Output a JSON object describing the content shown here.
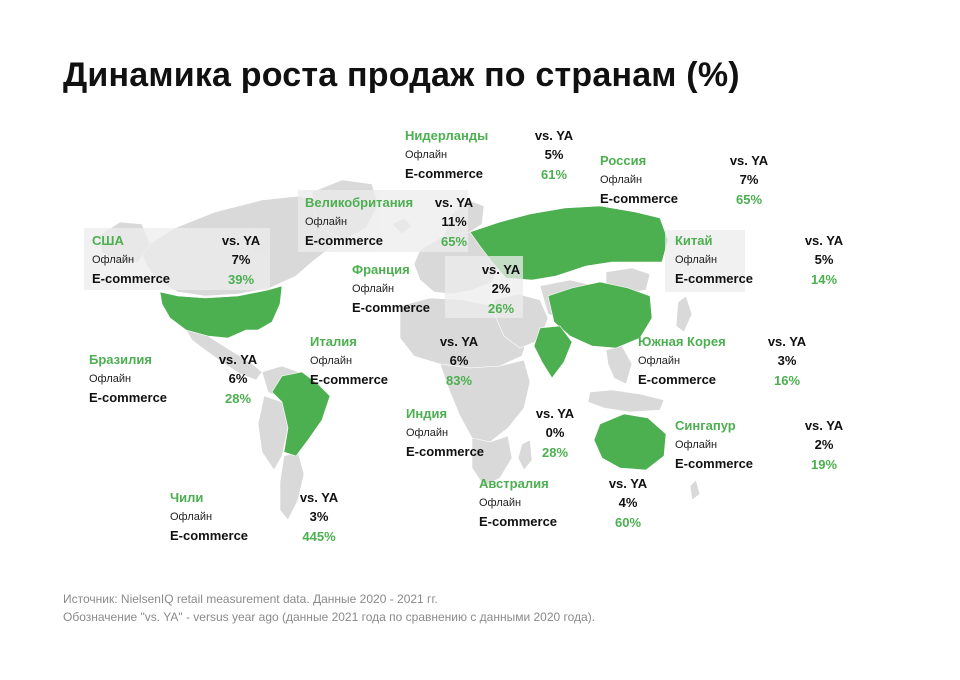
{
  "title": "Динамика роста продаж по странам (%)",
  "colors": {
    "accent": "#4caf50",
    "land": "#d9d9d9",
    "highlight": "#4caf50",
    "text": "#111111",
    "footnote": "#8a8a8a"
  },
  "labels": {
    "vs": "vs. YA",
    "offline": "Офлайн",
    "ecommerce": "E-commerce"
  },
  "countries": [
    {
      "id": "nl",
      "name": "Нидерланды",
      "offline": "5%",
      "ecommerce": "61%"
    },
    {
      "id": "ru",
      "name": "Россия",
      "offline": "7%",
      "ecommerce": "65%"
    },
    {
      "id": "uk",
      "name": "Великобритания",
      "offline": "11%",
      "ecommerce": "65%"
    },
    {
      "id": "us",
      "name": "США",
      "offline": "7%",
      "ecommerce": "39%"
    },
    {
      "id": "cn",
      "name": "Китай",
      "offline": "5%",
      "ecommerce": "14%"
    },
    {
      "id": "fr",
      "name": "Франция",
      "offline": "2%",
      "ecommerce": "26%"
    },
    {
      "id": "it",
      "name": "Италия",
      "offline": "6%",
      "ecommerce": "83%"
    },
    {
      "id": "kr",
      "name": "Южная Корея",
      "offline": "3%",
      "ecommerce": "16%"
    },
    {
      "id": "br",
      "name": "Бразилия",
      "offline": "6%",
      "ecommerce": "28%"
    },
    {
      "id": "in",
      "name": "Индия",
      "offline": "0%",
      "ecommerce": "28%"
    },
    {
      "id": "sg",
      "name": "Сингапур",
      "offline": "2%",
      "ecommerce": "19%"
    },
    {
      "id": "au",
      "name": "Австралия",
      "offline": "4%",
      "ecommerce": "60%"
    },
    {
      "id": "cl",
      "name": "Чили",
      "offline": "3%",
      "ecommerce": "445%"
    }
  ],
  "chart_data": {
    "type": "table",
    "title": "Динамика роста продаж по странам (%)",
    "columns": [
      "Офлайн",
      "E-commerce"
    ],
    "column_header": "vs. YA",
    "rows": [
      {
        "country": "Нидерланды",
        "offline": 5,
        "ecommerce": 61
      },
      {
        "country": "Россия",
        "offline": 7,
        "ecommerce": 65
      },
      {
        "country": "Великобритания",
        "offline": 11,
        "ecommerce": 65
      },
      {
        "country": "США",
        "offline": 7,
        "ecommerce": 39
      },
      {
        "country": "Китай",
        "offline": 5,
        "ecommerce": 14
      },
      {
        "country": "Франция",
        "offline": 2,
        "ecommerce": 26
      },
      {
        "country": "Италия",
        "offline": 6,
        "ecommerce": 83
      },
      {
        "country": "Южная Корея",
        "offline": 3,
        "ecommerce": 16
      },
      {
        "country": "Бразилия",
        "offline": 6,
        "ecommerce": 28
      },
      {
        "country": "Индия",
        "offline": 0,
        "ecommerce": 28
      },
      {
        "country": "Сингапур",
        "offline": 2,
        "ecommerce": 19
      },
      {
        "country": "Австралия",
        "offline": 4,
        "ecommerce": 60
      },
      {
        "country": "Чили",
        "offline": 3,
        "ecommerce": 445
      }
    ],
    "highlighted_on_map": [
      "США",
      "Бразилия",
      "Россия",
      "Китай",
      "Индия",
      "Австралия"
    ]
  },
  "footer": {
    "source": "Источник: NielsenIQ retail measurement data. Данные 2020 - 2021 гг.",
    "note": "Обозначение \"vs. YA\" - versus year ago (данные 2021 года по сравнению с данными 2020 года)."
  }
}
